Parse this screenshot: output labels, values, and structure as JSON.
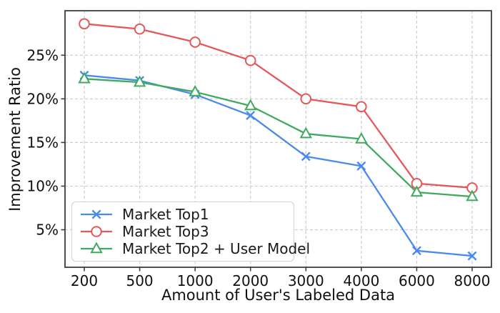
{
  "figure": {
    "background": "#ffffff"
  },
  "chart_data": {
    "type": "line",
    "title": "",
    "xlabel": "Amount of User's Labeled Data",
    "ylabel": "Improvement Ratio",
    "x_categories": [
      "200",
      "500",
      "1000",
      "2000",
      "3000",
      "4000",
      "6000",
      "8000"
    ],
    "yticks": [
      5,
      10,
      15,
      20,
      25
    ],
    "ytick_labels": [
      "5%",
      "10%",
      "15%",
      "20%",
      "25%"
    ],
    "ylim": [
      0.7,
      30.1
    ],
    "grid": true,
    "legend_position": "lower-left",
    "colors": {
      "axis_text": "#111111",
      "spine": "#3d3d3d",
      "grid": "#cdcdcd",
      "marker_fill": "#ffffff"
    },
    "series": [
      {
        "name": "Market Top1",
        "marker": "x",
        "color": "#4a8af0",
        "values": [
          22.7,
          22.1,
          20.5,
          18.1,
          13.4,
          12.3,
          2.6,
          2.0
        ]
      },
      {
        "name": "Market Top3",
        "marker": "circle",
        "color": "#e4585a",
        "values": [
          28.6,
          28.0,
          26.5,
          24.4,
          20.0,
          19.1,
          10.3,
          9.8
        ]
      },
      {
        "name": "Market Top2 + User Model",
        "marker": "triangle",
        "color": "#3faa5f",
        "values": [
          22.3,
          21.9,
          20.8,
          19.2,
          16.0,
          15.4,
          9.3,
          8.8
        ]
      }
    ]
  }
}
